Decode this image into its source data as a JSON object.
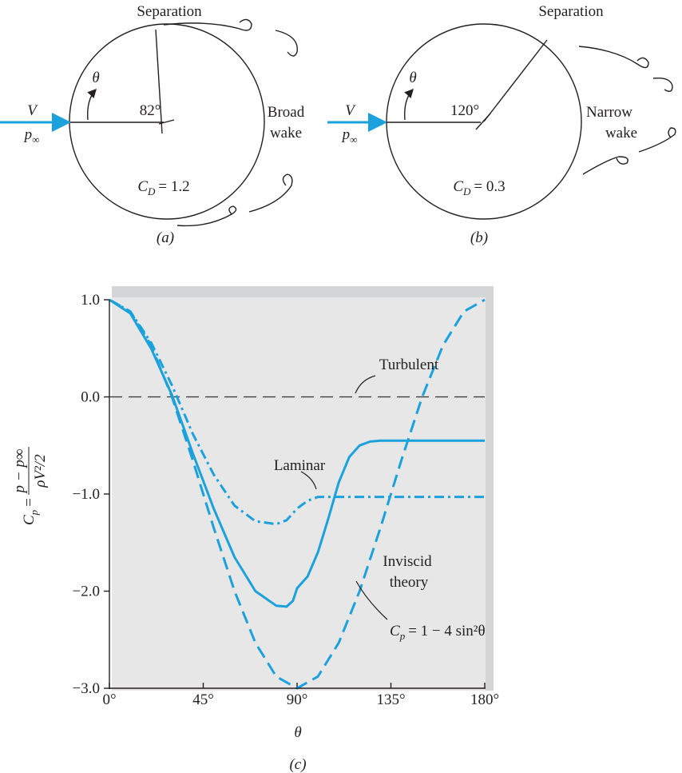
{
  "diagrams": [
    {
      "separation": "Separation",
      "angle_symbol": "θ",
      "velocity": "V",
      "pressure": {
        "symbol": "p",
        "subscript": "∞"
      },
      "separation_angle": "82°",
      "wake": [
        "Broad",
        "wake"
      ],
      "drag": {
        "symbol": "C",
        "subscript": "D",
        "rest": "= 1.2"
      },
      "caption": "(a)"
    },
    {
      "separation": "Separation",
      "angle_symbol": "θ",
      "velocity": "V",
      "pressure": {
        "symbol": "p",
        "subscript": "∞"
      },
      "separation_angle": "120°",
      "wake": [
        "Narrow",
        "wake"
      ],
      "drag": {
        "symbol": "C",
        "subscript": "D",
        "rest": "= 0.3"
      },
      "caption": "(b)"
    }
  ],
  "chart_data": {
    "type": "line",
    "xlabel": "θ",
    "ylabel": {
      "symbol": "C",
      "subscript": "p",
      "eq": "=",
      "numerator": "p − p∞",
      "denominator": "ρV²/2"
    },
    "caption": "(c)",
    "xlim": [
      0,
      180
    ],
    "ylim": [
      -3,
      1
    ],
    "xticks": [
      {
        "value": 0,
        "label": "0°"
      },
      {
        "value": 45,
        "label": "45°"
      },
      {
        "value": 90,
        "label": "90°"
      },
      {
        "value": 135,
        "label": "135°"
      },
      {
        "value": 180,
        "label": "180°"
      }
    ],
    "yticks": [
      {
        "value": 1,
        "label": "1.0"
      },
      {
        "value": 0,
        "label": "0.0"
      },
      {
        "value": -1,
        "label": "−1.0"
      },
      {
        "value": -2,
        "label": "−2.0"
      },
      {
        "value": -3,
        "label": "−3.0"
      }
    ],
    "reference_lines": [
      {
        "value": 0,
        "color": "#333333",
        "style": "dashed"
      }
    ],
    "series": [
      {
        "name": "Inviscid theory",
        "color": "#1ba1dc",
        "style": "dashed",
        "x": [
          0,
          10,
          20,
          30,
          40,
          50,
          60,
          70,
          80,
          90,
          100,
          110,
          120,
          130,
          140,
          150,
          160,
          170,
          180
        ],
        "values": [
          1,
          0.879,
          0.532,
          0,
          -0.653,
          -1.347,
          -2,
          -2.532,
          -2.879,
          -3,
          -2.879,
          -2.532,
          -2,
          -1.347,
          -0.653,
          0,
          0.532,
          0.879,
          1
        ]
      },
      {
        "name": "Laminar",
        "color": "#1ba1dc",
        "style": "dashdot",
        "x": [
          0,
          10,
          20,
          30,
          40,
          50,
          60,
          70,
          80,
          85,
          90,
          95,
          100,
          180
        ],
        "values": [
          1,
          0.88,
          0.56,
          0.12,
          -0.38,
          -0.8,
          -1.12,
          -1.28,
          -1.31,
          -1.27,
          -1.15,
          -1.07,
          -1.03,
          -1.03
        ]
      },
      {
        "name": "Turbulent",
        "color": "#1ba1dc",
        "style": "solid",
        "x": [
          0,
          10,
          20,
          30,
          40,
          50,
          60,
          70,
          80,
          85,
          88,
          90,
          95,
          100,
          105,
          110,
          115,
          120,
          125,
          130,
          180
        ],
        "values": [
          1,
          0.86,
          0.5,
          0.02,
          -0.58,
          -1.15,
          -1.65,
          -2.0,
          -2.15,
          -2.16,
          -2.1,
          -1.97,
          -1.85,
          -1.6,
          -1.25,
          -0.88,
          -0.62,
          -0.5,
          -0.46,
          -0.45,
          -0.45
        ]
      }
    ],
    "annotations": {
      "inviscid": [
        "Inviscid",
        "theory"
      ],
      "formula": {
        "symbol": "C",
        "subscript": "p",
        "rest": "= 1 − 4 sin²θ"
      }
    }
  }
}
